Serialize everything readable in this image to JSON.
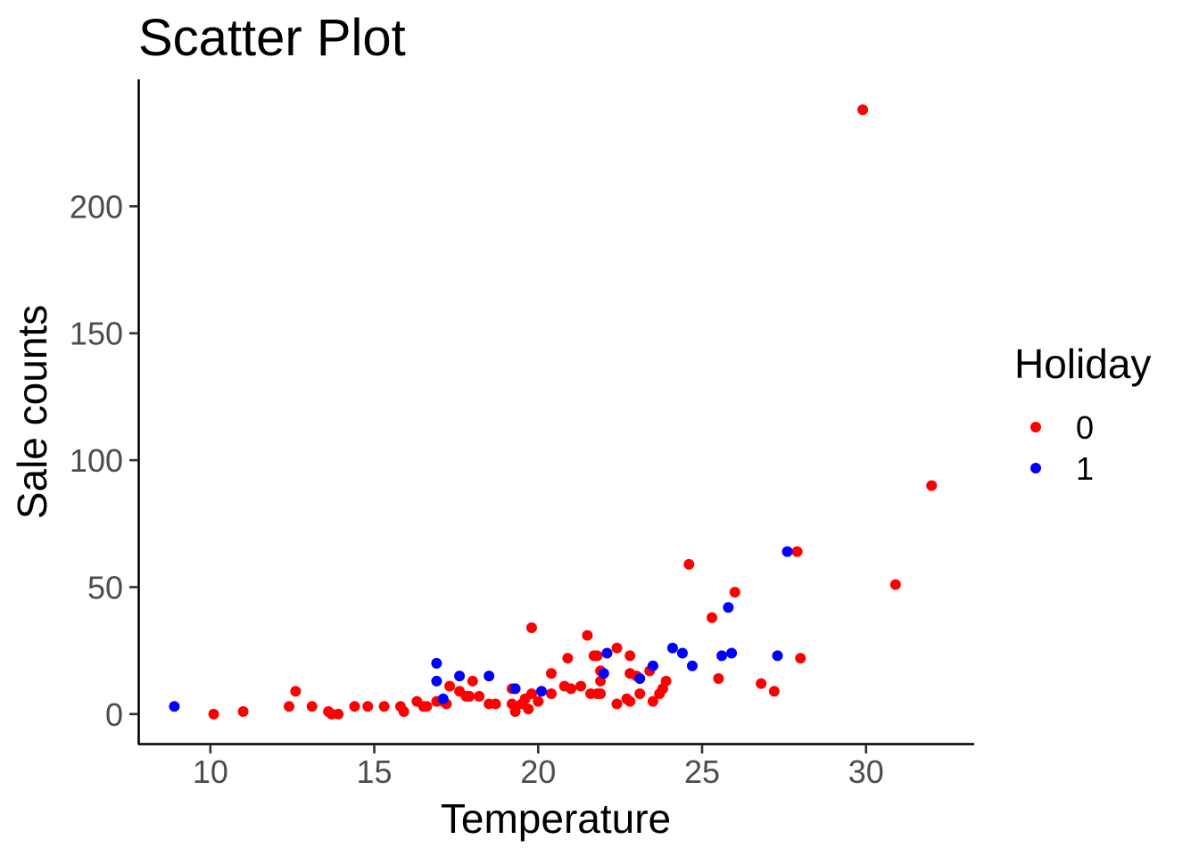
{
  "chart_data": {
    "type": "scatter",
    "title": "Scatter Plot",
    "xlabel": "Temperature",
    "ylabel": "Sale counts",
    "xlim": [
      7.8,
      33.3
    ],
    "ylim": [
      -12,
      250
    ],
    "x_ticks": [
      10,
      15,
      20,
      25,
      30
    ],
    "y_ticks": [
      0,
      50,
      100,
      150,
      200
    ],
    "grid": false,
    "legend": {
      "title": "Holiday",
      "placement": "right"
    },
    "series": [
      {
        "name": "0",
        "color": "#ff0000",
        "points": [
          [
            10.1,
            0
          ],
          [
            11.0,
            1
          ],
          [
            12.4,
            3
          ],
          [
            12.6,
            9
          ],
          [
            13.1,
            3
          ],
          [
            13.6,
            1
          ],
          [
            13.7,
            0
          ],
          [
            13.9,
            0
          ],
          [
            14.4,
            3
          ],
          [
            14.8,
            3
          ],
          [
            15.3,
            3
          ],
          [
            15.8,
            3
          ],
          [
            15.9,
            1
          ],
          [
            16.3,
            5
          ],
          [
            16.5,
            3
          ],
          [
            16.6,
            3
          ],
          [
            16.9,
            5
          ],
          [
            17.1,
            5
          ],
          [
            17.2,
            4
          ],
          [
            17.3,
            11
          ],
          [
            17.6,
            9
          ],
          [
            17.8,
            7
          ],
          [
            17.9,
            7
          ],
          [
            18.0,
            13
          ],
          [
            18.2,
            7
          ],
          [
            18.5,
            4
          ],
          [
            18.7,
            4
          ],
          [
            19.2,
            10
          ],
          [
            19.2,
            4
          ],
          [
            19.3,
            1
          ],
          [
            19.5,
            4
          ],
          [
            19.6,
            6
          ],
          [
            19.7,
            2
          ],
          [
            19.8,
            8
          ],
          [
            19.8,
            34
          ],
          [
            20.0,
            5
          ],
          [
            20.4,
            8
          ],
          [
            20.4,
            16
          ],
          [
            20.8,
            11
          ],
          [
            20.9,
            22
          ],
          [
            21.0,
            10
          ],
          [
            21.3,
            11
          ],
          [
            21.5,
            31
          ],
          [
            21.6,
            8
          ],
          [
            21.7,
            23
          ],
          [
            21.8,
            8
          ],
          [
            21.8,
            23
          ],
          [
            21.9,
            8
          ],
          [
            21.9,
            13
          ],
          [
            21.9,
            17
          ],
          [
            22.4,
            4
          ],
          [
            22.4,
            26
          ],
          [
            22.7,
            6
          ],
          [
            22.8,
            5
          ],
          [
            22.8,
            16
          ],
          [
            22.8,
            23
          ],
          [
            23.0,
            15
          ],
          [
            23.1,
            8
          ],
          [
            23.4,
            17
          ],
          [
            23.5,
            5
          ],
          [
            23.7,
            8
          ],
          [
            23.8,
            10
          ],
          [
            23.9,
            13
          ],
          [
            24.6,
            59
          ],
          [
            25.3,
            38
          ],
          [
            25.5,
            14
          ],
          [
            26.0,
            48
          ],
          [
            26.8,
            12
          ],
          [
            27.2,
            9
          ],
          [
            27.9,
            64
          ],
          [
            28.0,
            22
          ],
          [
            29.9,
            238
          ],
          [
            30.9,
            51
          ],
          [
            32.0,
            90
          ]
        ]
      },
      {
        "name": "1",
        "color": "#0000ff",
        "points": [
          [
            8.9,
            3
          ],
          [
            16.9,
            20
          ],
          [
            16.9,
            13
          ],
          [
            17.1,
            6
          ],
          [
            17.6,
            15
          ],
          [
            18.5,
            15
          ],
          [
            19.3,
            10
          ],
          [
            20.1,
            9
          ],
          [
            22.0,
            16
          ],
          [
            22.1,
            24
          ],
          [
            23.1,
            14
          ],
          [
            23.5,
            19
          ],
          [
            24.1,
            26
          ],
          [
            24.4,
            24
          ],
          [
            24.7,
            19
          ],
          [
            25.6,
            23
          ],
          [
            25.8,
            42
          ],
          [
            25.9,
            24
          ],
          [
            27.3,
            23
          ],
          [
            27.6,
            64
          ]
        ]
      }
    ]
  }
}
